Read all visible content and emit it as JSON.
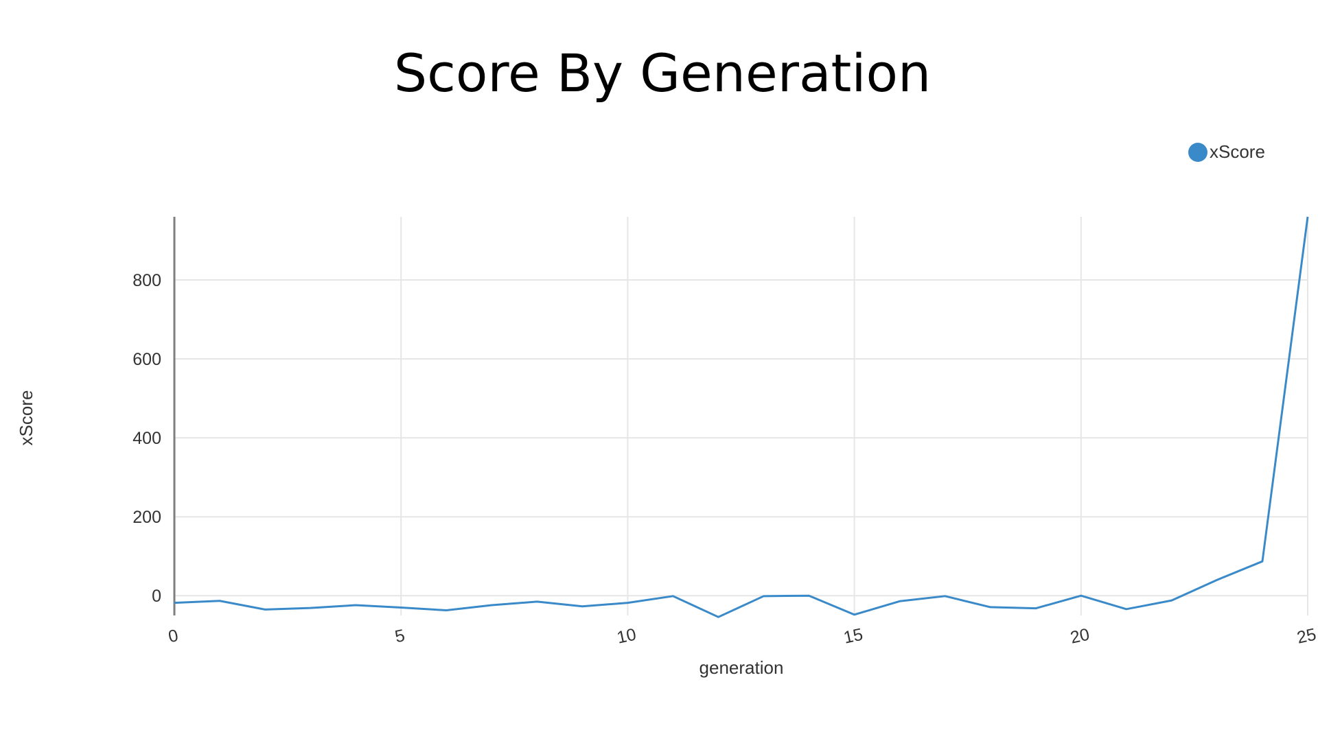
{
  "chart_data": {
    "type": "line",
    "title": "Score By Generation",
    "xlabel": "generation",
    "ylabel": "xScore",
    "xlim": [
      0,
      25
    ],
    "ylim": [
      -50,
      960
    ],
    "x_ticks": [
      0,
      5,
      10,
      15,
      20,
      25
    ],
    "y_ticks": [
      0,
      200,
      400,
      600,
      800
    ],
    "grid": true,
    "legend_position": "top-right",
    "series": [
      {
        "name": "xScore",
        "color": "#3a8ac9",
        "x": [
          0,
          1,
          2,
          3,
          4,
          5,
          6,
          7,
          8,
          9,
          10,
          11,
          12,
          13,
          14,
          15,
          16,
          17,
          18,
          19,
          20,
          21,
          22,
          23,
          24,
          25
        ],
        "y": [
          -18,
          -13,
          -35,
          -31,
          -24,
          -30,
          -37,
          -24,
          -15,
          -27,
          -18,
          -1,
          -54,
          -1,
          0,
          -48,
          -14,
          -1,
          -29,
          -32,
          0,
          -34,
          -12,
          40,
          87,
          960
        ]
      }
    ]
  }
}
